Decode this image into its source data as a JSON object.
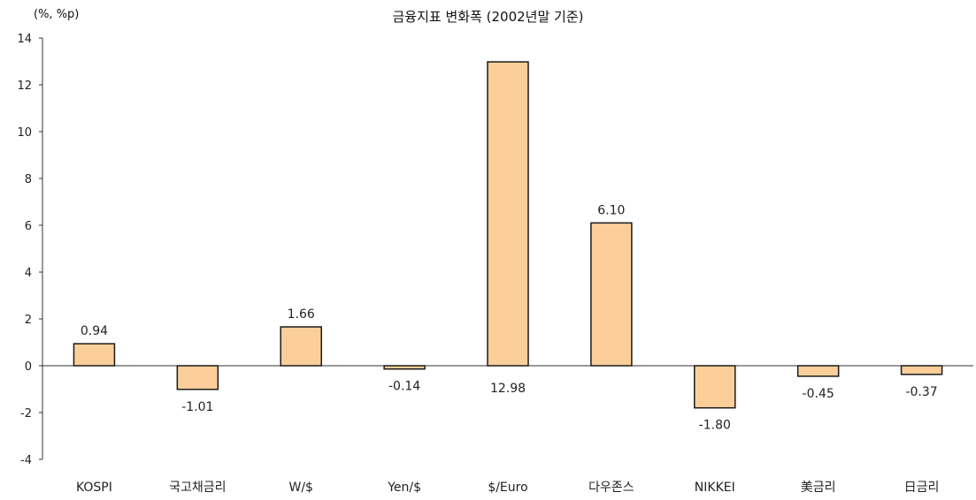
{
  "chart_data": {
    "type": "bar",
    "title": "금융지표 변화폭 (2002년말 기준)",
    "unit_label": "(%, %p)",
    "categories": [
      "KOSPI",
      "국고채금리",
      "W/$",
      "Yen/$",
      "$/Euro",
      "다우존스",
      "NIKKEI",
      "美금리",
      "日금리"
    ],
    "values": [
      0.94,
      -1.01,
      1.66,
      -0.14,
      12.98,
      6.1,
      -1.8,
      -0.45,
      -0.37
    ],
    "value_labels": [
      "0.94",
      "-1.01",
      "1.66",
      "-0.14",
      "12.98",
      "6.10",
      "-1.80",
      "-0.45",
      "-0.37"
    ],
    "ylim": [
      -4,
      14
    ],
    "yticks": [
      "-4",
      "-2",
      "0",
      "2",
      "4",
      "6",
      "8",
      "10",
      "12",
      "14"
    ],
    "grid": false,
    "colors": {
      "bar_fill": "#fccf9a",
      "bar_stroke": "#1a1a1a",
      "axis": "#333333"
    }
  }
}
